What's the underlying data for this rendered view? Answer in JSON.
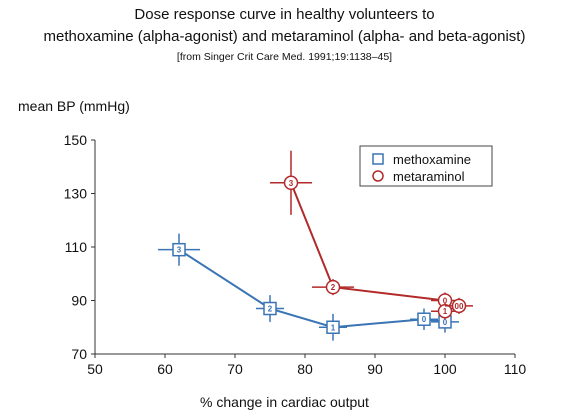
{
  "header": {
    "title_line1": "Dose response curve in healthy volunteers to",
    "title_line2": "methoxamine (alpha-agonist) and metaraminol (alpha- and beta-agonist)",
    "source": "[from Singer Crit Care Med. 1991;19:1138–45]"
  },
  "chart_data": {
    "type": "scatter",
    "ylabel": "mean BP (mmHg)",
    "xlabel": "% change in cardiac output",
    "xlim": [
      50,
      110
    ],
    "ylim": [
      70,
      150
    ],
    "xticks": [
      "50",
      "60",
      "70",
      "80",
      "90",
      "100",
      "110"
    ],
    "yticks": [
      "70",
      "90",
      "110",
      "130",
      "150"
    ],
    "grid": false,
    "legend_position": "top-right",
    "series": [
      {
        "name": "methoxamine",
        "marker": "square",
        "color": "#3a74b4",
        "points": [
          {
            "x": 62,
            "y": 109,
            "label": "3",
            "xerr": 3,
            "yerr": 6
          },
          {
            "x": 75,
            "y": 87,
            "label": "2",
            "xerr": 2,
            "yerr": 5
          },
          {
            "x": 84,
            "y": 80,
            "label": "1",
            "xerr": 2,
            "yerr": 5
          },
          {
            "x": 97,
            "y": 83,
            "label": "0",
            "xerr": 2,
            "yerr": 4
          },
          {
            "x": 100,
            "y": 82,
            "label": "0",
            "xerr": 2,
            "yerr": 4
          }
        ]
      },
      {
        "name": "metaraminol",
        "marker": "circle",
        "color": "#b22a2a",
        "points": [
          {
            "x": 78,
            "y": 134,
            "label": "3",
            "xerr": 3,
            "yerr": 12
          },
          {
            "x": 84,
            "y": 95,
            "label": "2",
            "xerr": 3,
            "yerr": 3
          },
          {
            "x": 100,
            "y": 90,
            "label": "0",
            "xerr": 2,
            "yerr": 3
          },
          {
            "x": 100,
            "y": 86,
            "label": "1",
            "xerr": 2,
            "yerr": 3
          },
          {
            "x": 102,
            "y": 88,
            "label": "00",
            "xerr": 2,
            "yerr": 3
          }
        ]
      }
    ]
  }
}
